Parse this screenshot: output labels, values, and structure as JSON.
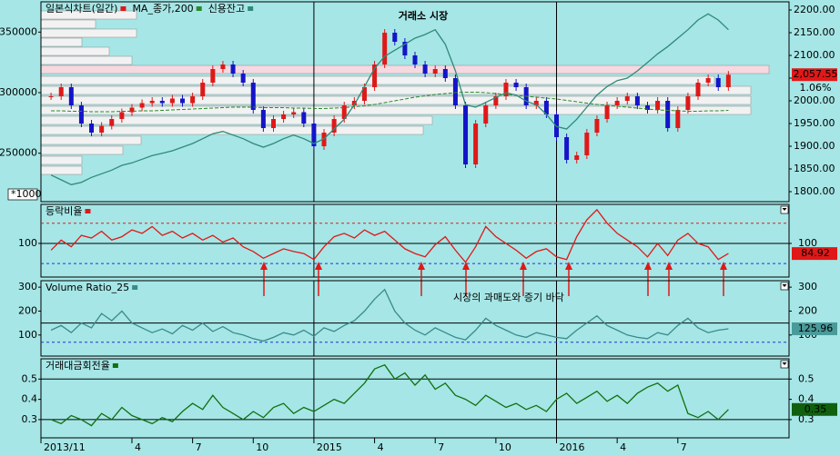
{
  "chart_data": {
    "type": "line",
    "title": "거래소 시장",
    "x": [
      -1,
      -0.5,
      0,
      0.5,
      1,
      1.5,
      2,
      2.5,
      3,
      3.5,
      4,
      4.5,
      5,
      5.5,
      6,
      6.5,
      7,
      7.5,
      8,
      8.5,
      9,
      9.5,
      10,
      10.5,
      11,
      11.5,
      12,
      12.5,
      13,
      13.5,
      14,
      14.5,
      15,
      15.5,
      16,
      16.5,
      17,
      17.5,
      18,
      18.5,
      19,
      19.5,
      20,
      20.5,
      21,
      21.5,
      22,
      22.5,
      23,
      23.5,
      24,
      24.5,
      25,
      25.5,
      26,
      26.5,
      27,
      27.5,
      28,
      28.5,
      29,
      29.5,
      30,
      30.5,
      31,
      31.5,
      32,
      32.5
    ],
    "xlim": [
      -1.5,
      35.5
    ],
    "xticks": [
      {
        "value": -1.5,
        "label": "2013/11"
      },
      {
        "value": 3,
        "label": "4"
      },
      {
        "value": 6,
        "label": "7"
      },
      {
        "value": 9,
        "label": "10"
      },
      {
        "value": 12,
        "label": "2015"
      },
      {
        "value": 15,
        "label": "4"
      },
      {
        "value": 18,
        "label": "7"
      },
      {
        "value": 21,
        "label": "10"
      },
      {
        "value": 24,
        "label": "2016"
      },
      {
        "value": 27,
        "label": "4"
      },
      {
        "value": 30,
        "label": "7"
      }
    ],
    "panels": [
      {
        "ylim": [
          210000,
          375000
        ],
        "yticks": [
          250000,
          300000,
          350000
        ],
        "y_unit_label": "*1000",
        "y2lim": [
          1778,
          2218
        ],
        "y2ticks": [
          {
            "value": 2200,
            "label": "2200.00"
          },
          {
            "value": 2150,
            "label": "2150.00"
          },
          {
            "value": 2100,
            "label": "2100.00"
          },
          {
            "value": 2050,
            "label": "2050.00"
          },
          {
            "value": 2000,
            "label": "2000.00"
          },
          {
            "value": 1950,
            "label": "1950.00"
          },
          {
            "value": 1900,
            "label": "1900.00"
          },
          {
            "value": 1850,
            "label": "1850.00"
          },
          {
            "value": 1800,
            "label": "1800.00"
          }
        ],
        "change_label": "1.06%",
        "series": [
          {
            "name": "일본식차트(일간)",
            "color": "#e01818",
            "down_color": "#1414c8",
            "style": "candle",
            "axis": "y2",
            "box_color": "#e01818",
            "values": [
              2010,
              2030,
              1990,
              1950,
              1930,
              1945,
              1960,
              1975,
              1985,
              1995,
              2000,
              1995,
              2005,
              1995,
              2010,
              2040,
              2070,
              2080,
              2060,
              2040,
              1980,
              1940,
              1960,
              1970,
              1975,
              1950,
              1900,
              1930,
              1960,
              1990,
              2000,
              2030,
              2080,
              2150,
              2130,
              2100,
              2080,
              2060,
              2070,
              2050,
              1990,
              1860,
              1950,
              1990,
              2010,
              2040,
              2030,
              1990,
              2000,
              1970,
              1920,
              1870,
              1880,
              1930,
              1960,
              1990,
              2000,
              2010,
              1990,
              1980,
              2000,
              1940,
              1980,
              2010,
              2040,
              2050,
              2030,
              2057.55
            ],
            "value_labels": {
              "67": "2,057.55"
            }
          },
          {
            "name": "MA_종가,200",
            "color": "#2a8a2a",
            "style": "dash",
            "axis": "y2",
            "values": [
              1978,
              1978,
              1977,
              1977,
              1976,
              1976,
              1976,
              1977,
              1977,
              1978,
              1978,
              1979,
              1980,
              1981,
              1982,
              1983,
              1984,
              1985,
              1986,
              1986,
              1986,
              1985,
              1985,
              1985,
              1984,
              1984,
              1983,
              1983,
              1984,
              1985,
              1987,
              1989,
              1992,
              1996,
              2000,
              2004,
              2008,
              2011,
              2014,
              2016,
              2018,
              2019,
              2019,
              2018,
              2016,
              2014,
              2012,
              2010,
              2008,
              2006,
              2004,
              2001,
              1998,
              1995,
              1992,
              1990,
              1988,
              1986,
              1984,
              1982,
              1980,
              1979,
              1978,
              1977,
              1977,
              1978,
              1978,
              1979
            ]
          },
          {
            "name": "신용잔고",
            "color": "#2f8a78",
            "style": "solid",
            "values": [
              232000,
              228000,
              224000,
              226000,
              230000,
              233000,
              236000,
              240000,
              242000,
              245000,
              248000,
              250000,
              252000,
              255000,
              258000,
              262000,
              266000,
              268000,
              265000,
              262000,
              258000,
              255000,
              258000,
              262000,
              265000,
              262000,
              258000,
              262000,
              270000,
              278000,
              290000,
              305000,
              320000,
              330000,
              335000,
              340000,
              345000,
              348000,
              352000,
              340000,
              318000,
              290000,
              288000,
              292000,
              296000,
              300000,
              298000,
              293000,
              290000,
              282000,
              272000,
              270000,
              278000,
              288000,
              298000,
              305000,
              310000,
              312000,
              318000,
              325000,
              332000,
              338000,
              345000,
              352000,
              360000,
              365000,
              360000,
              352000
            ]
          }
        ]
      },
      {
        "ylim": [
          50,
          158
        ],
        "yticks": [
          100
        ],
        "hlines": [
          {
            "value": 130,
            "color": "#e01818",
            "dash": true
          },
          {
            "value": 100,
            "color": "#000000",
            "dash": false
          },
          {
            "value": 70,
            "color": "#2030e0",
            "dash": true
          }
        ],
        "annotation": "시장의 과매도와 증기 바닥",
        "series": [
          {
            "name": "등락비율",
            "color": "#e01818",
            "style": "solid",
            "box_color": "#e01818",
            "values": [
              90,
              105,
              95,
              112,
              108,
              118,
              105,
              110,
              120,
              115,
              125,
              112,
              118,
              108,
              115,
              105,
              112,
              102,
              108,
              95,
              88,
              78,
              85,
              92,
              88,
              85,
              76,
              95,
              110,
              115,
              108,
              120,
              112,
              118,
              105,
              92,
              85,
              80,
              98,
              110,
              90,
              72,
              95,
              125,
              110,
              100,
              90,
              78,
              88,
              92,
              80,
              76,
              110,
              135,
              150,
              130,
              115,
              105,
              95,
              80,
              100,
              82,
              105,
              115,
              100,
              95,
              76,
              84.92
            ]
          }
        ]
      },
      {
        "ylim": [
          12,
          327
        ],
        "yticks": [
          100,
          200,
          300
        ],
        "hlines": [
          {
            "value": 150,
            "color": "#000000",
            "dash": false
          },
          {
            "value": 70,
            "color": "#2030e0",
            "dash": true
          }
        ],
        "series": [
          {
            "name": "Volume Ratio_25",
            "color": "#3a8a8a",
            "style": "solid",
            "box_color": "#4a9a9a",
            "values": [
              120,
              140,
              110,
              150,
              130,
              190,
              160,
              200,
              150,
              130,
              110,
              125,
              105,
              140,
              120,
              150,
              115,
              135,
              110,
              100,
              85,
              75,
              90,
              110,
              100,
              120,
              95,
              130,
              115,
              140,
              160,
              200,
              250,
              290,
              200,
              150,
              120,
              100,
              130,
              110,
              90,
              80,
              120,
              170,
              140,
              120,
              100,
              90,
              110,
              100,
              90,
              85,
              120,
              150,
              180,
              140,
              120,
              100,
              90,
              85,
              110,
              100,
              140,
              170,
              130,
              110,
              120,
              125.96
            ]
          }
        ]
      },
      {
        "ylim": [
          0.21,
          0.6
        ],
        "yticks": [
          0.3,
          0.4,
          0.5
        ],
        "hlines": [
          {
            "value": 0.5,
            "color": "#000000",
            "dash": false
          },
          {
            "value": 0.3,
            "color": "#000000",
            "dash": false
          }
        ],
        "series": [
          {
            "name": "거래대금회전율",
            "color": "#107010",
            "style": "solid",
            "box_color": "#106010",
            "values": [
              0.3,
              0.28,
              0.32,
              0.3,
              0.27,
              0.33,
              0.3,
              0.36,
              0.32,
              0.3,
              0.28,
              0.31,
              0.29,
              0.34,
              0.38,
              0.35,
              0.42,
              0.36,
              0.33,
              0.3,
              0.34,
              0.31,
              0.36,
              0.38,
              0.33,
              0.36,
              0.34,
              0.37,
              0.4,
              0.38,
              0.43,
              0.48,
              0.55,
              0.57,
              0.5,
              0.53,
              0.47,
              0.52,
              0.45,
              0.48,
              0.42,
              0.4,
              0.37,
              0.42,
              0.39,
              0.36,
              0.38,
              0.35,
              0.37,
              0.34,
              0.4,
              0.43,
              0.38,
              0.41,
              0.44,
              0.39,
              0.42,
              0.38,
              0.43,
              0.46,
              0.48,
              0.44,
              0.47,
              0.33,
              0.31,
              0.34,
              0.3,
              0.35
            ]
          }
        ]
      }
    ]
  }
}
